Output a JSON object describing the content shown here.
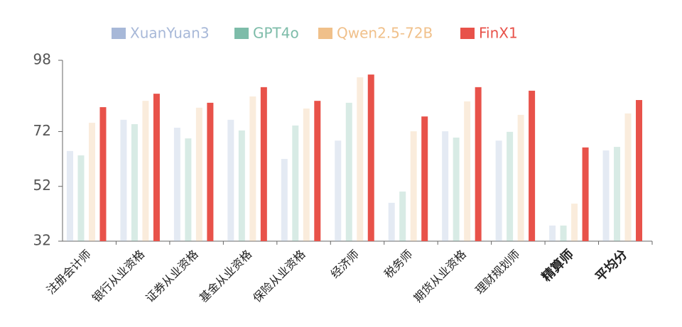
{
  "chart_data": {
    "type": "bar",
    "categories": [
      "注册会计师",
      "银行从业资格",
      "证券从业资格",
      "基金从业资格",
      "保险从业资格",
      "经济师",
      "税务师",
      "期货从业资格",
      "理财规划师",
      "精算师",
      "平均分"
    ],
    "series": [
      {
        "name": "XuanYuan3",
        "color": "#a7b8d8",
        "values": [
          64.9,
          76.3,
          73.4,
          76.3,
          62.0,
          68.7,
          46.0,
          72.1,
          68.7,
          37.7,
          65.1
        ]
      },
      {
        "name": "GPT4o",
        "color": "#7dbca9",
        "values": [
          63.3,
          74.7,
          69.5,
          72.4,
          74.2,
          82.5,
          50.1,
          69.8,
          71.9,
          37.7,
          66.4
        ]
      },
      {
        "name": "Qwen2.5-72B",
        "color": "#f0c08a",
        "values": [
          75.2,
          83.2,
          80.7,
          84.8,
          80.4,
          91.8,
          72.1,
          83.0,
          78.1,
          45.7,
          78.6
        ]
      },
      {
        "name": "FinX1",
        "color": "#e8524a",
        "values": [
          80.9,
          85.8,
          82.5,
          88.2,
          83.2,
          92.8,
          77.5,
          88.2,
          86.9,
          66.2,
          83.5
        ]
      }
    ],
    "ylim": [
      32,
      98
    ],
    "yticks": [
      32,
      52,
      72,
      98
    ],
    "grid": false
  }
}
